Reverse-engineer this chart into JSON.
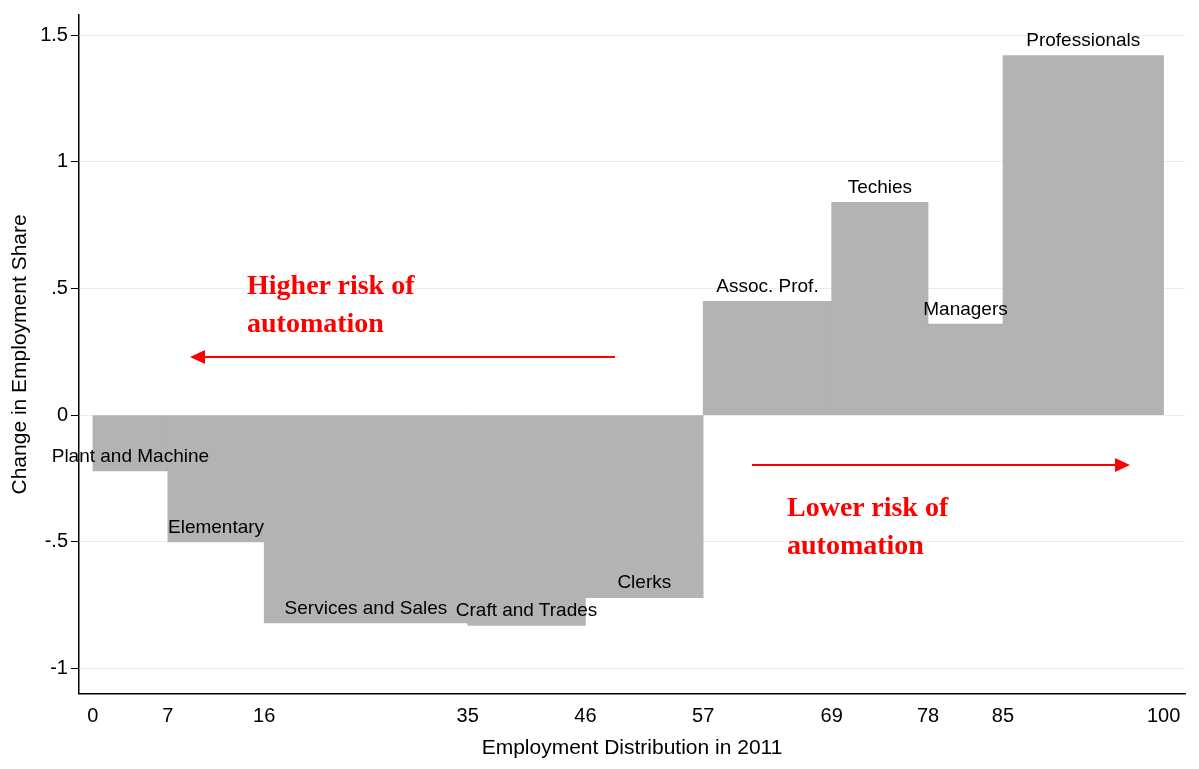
{
  "chart_data": {
    "type": "histogram",
    "xlabel": "Employment Distribution in 2011",
    "ylabel": "Change in Employment Share",
    "bins": [
      0,
      7,
      16,
      35,
      46,
      57,
      69,
      78,
      85,
      100
    ],
    "values": [
      -0.22,
      -0.5,
      -0.82,
      -0.83,
      -0.72,
      0.45,
      0.84,
      0.36,
      1.42
    ],
    "color": "#b3b3b3",
    "xlim": [
      -1.3,
      102
    ],
    "xticks": [
      0,
      7,
      16,
      35,
      46,
      57,
      69,
      78,
      85,
      100
    ],
    "ylim": [
      -1.1,
      1.58
    ],
    "yticks": [
      -1,
      {
        "value": -0.5,
        "label": "-.5"
      },
      0,
      {
        "value": 0.5,
        "label": ".5"
      },
      1,
      1.5
    ],
    "grid": "y",
    "annotations": [
      {
        "text": "Plant and Machine",
        "x": 3.5,
        "y": -0.22
      },
      {
        "text": "Elementary",
        "x": 11.5,
        "y": -0.5
      },
      {
        "text": "Services and Sales",
        "x": 25.5,
        "y": -0.82
      },
      {
        "text": "Craft and Trades",
        "x": 40.5,
        "y": -0.83
      },
      {
        "text": "Clerks",
        "x": 51.5,
        "y": -0.72
      },
      {
        "text": "Assoc. Prof.",
        "x": 63,
        "y": 0.45
      },
      {
        "text": "Techies",
        "x": 73.5,
        "y": 0.84
      },
      {
        "text": "Managers",
        "x": 81.5,
        "y": 0.36
      },
      {
        "text": "Professionals",
        "x": 92.5,
        "y": 1.42
      },
      "Higher risk of automation",
      "Lower risk of automation"
    ]
  }
}
